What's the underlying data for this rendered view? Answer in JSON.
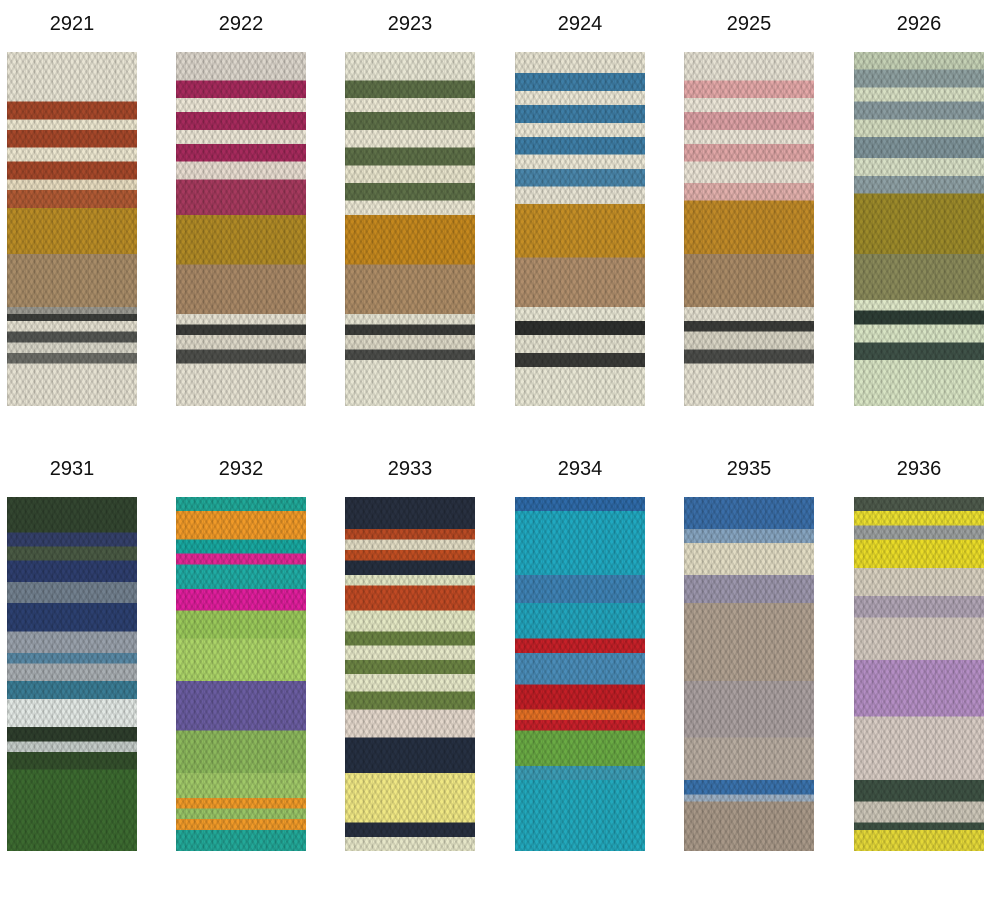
{
  "swatches": [
    {
      "code": "2921",
      "colors": [
        "#e8e4d4",
        "#a6482a",
        "#b98c26",
        "#a88c68",
        "#3d3f3c"
      ]
    },
    {
      "code": "2922",
      "colors": [
        "#dcd6cc",
        "#a62a5c",
        "#b08a26",
        "#a88866",
        "#3c3d3a"
      ]
    },
    {
      "code": "2923",
      "colors": [
        "#e8e6d4",
        "#5e7048",
        "#c4881e",
        "#ad8c66",
        "#3c3d3a"
      ]
    },
    {
      "code": "2924",
      "colors": [
        "#e8e4d2",
        "#3e7ea6",
        "#c48e26",
        "#b08e6c",
        "#2e302e"
      ]
    },
    {
      "code": "2925",
      "colors": [
        "#e6e2d4",
        "#e4a8a8",
        "#c08a28",
        "#a98a66",
        "#3c3d3a"
      ]
    },
    {
      "code": "2926",
      "colors": [
        "#c4d0b4",
        "#8ea0a0",
        "#9c8a2a",
        "#8a8a5a",
        "#2e3e36"
      ]
    },
    {
      "code": "2931",
      "colors": [
        "#334630",
        "#2e3e6e",
        "#98a0aa",
        "#3a7c94",
        "#e2e8e4",
        "#3c6a30"
      ]
    },
    {
      "code": "2932",
      "colors": [
        "#20a898",
        "#f09a28",
        "#e22896",
        "#acd468",
        "#6a5ca0"
      ]
    },
    {
      "code": "2933",
      "colors": [
        "#283040",
        "#c04a24",
        "#6c8444",
        "#e4d8cc",
        "#f0e884"
      ]
    },
    {
      "code": "2934",
      "colors": [
        "#2e6aa8",
        "#20a8c0",
        "#c62028",
        "#e47024",
        "#6aaa44"
      ]
    },
    {
      "code": "2935",
      "colors": [
        "#3a6ea8",
        "#e2dcc4",
        "#9c96ac",
        "#b0a090",
        "#a89888"
      ]
    },
    {
      "code": "2936",
      "colors": [
        "#4e5a4c",
        "#ece030",
        "#d8d0c0",
        "#b48ec4",
        "#3e5244"
      ]
    }
  ]
}
